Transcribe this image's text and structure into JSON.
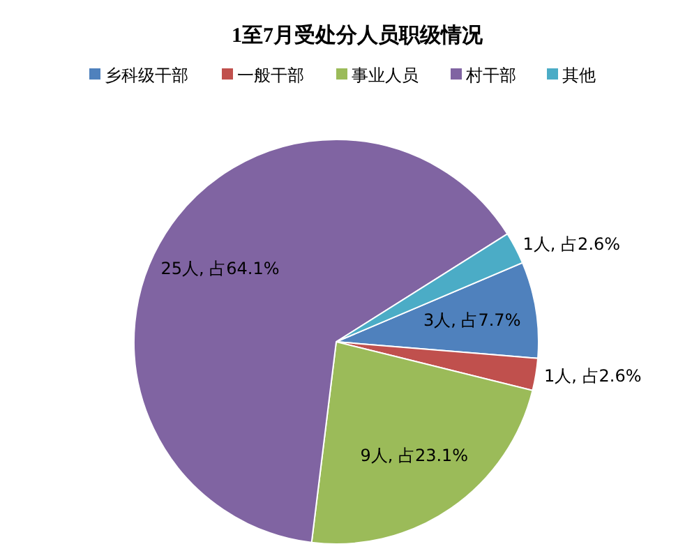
{
  "chart_data": {
    "type": "pie",
    "title": "1至7月受处分人员职级情况",
    "categories": [
      "乡科级干部",
      "一般干部",
      "事业人员",
      "村干部",
      "其他"
    ],
    "values": [
      3,
      1,
      9,
      25,
      1
    ],
    "colors": [
      "#4f81bd",
      "#c0504d",
      "#9bbb59",
      "#8064a2",
      "#4bacc6"
    ],
    "value_labels": [
      "3人, 占7.7%",
      "1人, 占2.6%",
      "9人, 占23.1%",
      "25人, 占64.1%",
      "1人, 占2.6%"
    ],
    "legend": "top"
  }
}
